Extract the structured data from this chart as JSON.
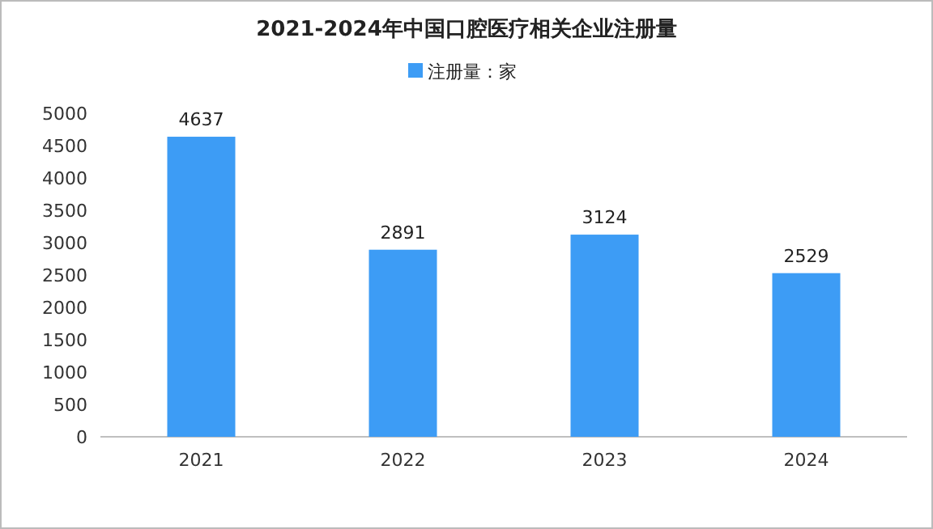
{
  "chart_data": {
    "type": "bar",
    "title": "2021-2024年中国口腔医疗相关企业注册量",
    "categories": [
      "2021",
      "2022",
      "2023",
      "2024"
    ],
    "series": [
      {
        "name": "注册量：家",
        "color": "#3d9cf5",
        "values": [
          4637,
          2891,
          3124,
          2529
        ]
      }
    ],
    "ylim": [
      0,
      5000
    ],
    "yticks": [
      0,
      500,
      1000,
      1500,
      2000,
      2500,
      3000,
      3500,
      4000,
      4500,
      5000
    ],
    "data_labels": true,
    "legend": "top",
    "grid": false
  }
}
